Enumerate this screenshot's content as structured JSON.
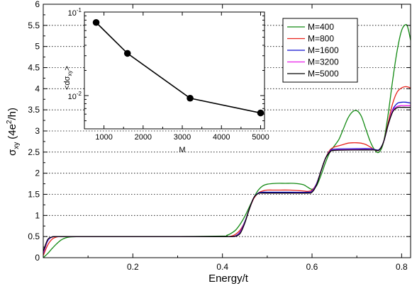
{
  "chart_data": [
    {
      "type": "line",
      "xlabel": "Energy/t",
      "ylabel": "σxy (4e²/h)",
      "ylabel_parts": {
        "base": "σ",
        "sub": "xy",
        "unit_open": "(4e",
        "sup": "2",
        "unit_close": "/h)"
      },
      "xlim": [
        0.0,
        0.82
      ],
      "ylim": [
        0,
        6
      ],
      "xticks": [
        0.2,
        0.4,
        0.6,
        0.8
      ],
      "xtick_labels": [
        "0.2",
        "0.4",
        "0.6",
        "0.8"
      ],
      "yticks": [
        0,
        0.5,
        1,
        1.5,
        2,
        2.5,
        3,
        3.5,
        4,
        4.5,
        5,
        5.5,
        6
      ],
      "ytick_labels": [
        "0",
        "0.5",
        "1",
        "1.5",
        "2",
        "2.5",
        "3",
        "3.5",
        "4",
        "4.5",
        "5",
        "5.5",
        "6"
      ],
      "grid": "horizontal dotted",
      "legend_position": "top-right",
      "series": [
        {
          "name": "M=400",
          "color": "#138a13",
          "x": [
            0.0,
            0.01,
            0.02,
            0.03,
            0.04,
            0.05,
            0.06,
            0.08,
            0.1,
            0.2,
            0.3,
            0.4,
            0.41,
            0.42,
            0.43,
            0.44,
            0.45,
            0.46,
            0.47,
            0.48,
            0.49,
            0.5,
            0.52,
            0.54,
            0.56,
            0.58,
            0.59,
            0.6,
            0.61,
            0.62,
            0.63,
            0.64,
            0.65,
            0.66,
            0.67,
            0.68,
            0.69,
            0.7,
            0.71,
            0.72,
            0.73,
            0.74,
            0.75,
            0.76,
            0.77,
            0.78,
            0.79,
            0.8,
            0.81,
            0.815,
            0.82
          ],
          "y": [
            0.0,
            0.1,
            0.22,
            0.33,
            0.42,
            0.47,
            0.49,
            0.5,
            0.5,
            0.5,
            0.5,
            0.51,
            0.53,
            0.58,
            0.66,
            0.8,
            0.98,
            1.2,
            1.42,
            1.6,
            1.7,
            1.74,
            1.76,
            1.76,
            1.76,
            1.73,
            1.67,
            1.62,
            1.7,
            1.95,
            2.25,
            2.5,
            2.65,
            2.8,
            3.05,
            3.3,
            3.45,
            3.48,
            3.35,
            3.05,
            2.75,
            2.55,
            2.5,
            2.75,
            3.4,
            4.2,
            4.9,
            5.38,
            5.52,
            5.4,
            5.15
          ]
        },
        {
          "name": "M=800",
          "color": "#e8231c",
          "x": [
            0.0,
            0.01,
            0.02,
            0.03,
            0.04,
            0.05,
            0.06,
            0.1,
            0.2,
            0.3,
            0.4,
            0.42,
            0.43,
            0.44,
            0.45,
            0.46,
            0.47,
            0.48,
            0.49,
            0.5,
            0.52,
            0.55,
            0.58,
            0.59,
            0.6,
            0.61,
            0.62,
            0.63,
            0.64,
            0.65,
            0.66,
            0.67,
            0.68,
            0.69,
            0.7,
            0.71,
            0.72,
            0.73,
            0.74,
            0.75,
            0.76,
            0.77,
            0.78,
            0.79,
            0.8,
            0.81,
            0.82
          ],
          "y": [
            0.05,
            0.3,
            0.44,
            0.49,
            0.5,
            0.5,
            0.5,
            0.5,
            0.5,
            0.5,
            0.5,
            0.51,
            0.56,
            0.66,
            0.85,
            1.15,
            1.4,
            1.53,
            1.58,
            1.6,
            1.6,
            1.6,
            1.58,
            1.57,
            1.6,
            1.75,
            2.05,
            2.35,
            2.55,
            2.62,
            2.65,
            2.68,
            2.71,
            2.72,
            2.72,
            2.71,
            2.68,
            2.62,
            2.55,
            2.55,
            2.75,
            3.2,
            3.65,
            3.92,
            4.02,
            4.05,
            4.02
          ]
        },
        {
          "name": "M=1600",
          "color": "#1010d0",
          "x": [
            0.0,
            0.01,
            0.02,
            0.03,
            0.04,
            0.06,
            0.1,
            0.2,
            0.3,
            0.4,
            0.42,
            0.43,
            0.44,
            0.45,
            0.46,
            0.47,
            0.48,
            0.49,
            0.5,
            0.55,
            0.59,
            0.6,
            0.61,
            0.62,
            0.63,
            0.64,
            0.65,
            0.7,
            0.73,
            0.74,
            0.75,
            0.76,
            0.77,
            0.78,
            0.79,
            0.8,
            0.81,
            0.82
          ],
          "y": [
            0.1,
            0.4,
            0.49,
            0.5,
            0.5,
            0.5,
            0.5,
            0.5,
            0.5,
            0.5,
            0.5,
            0.52,
            0.62,
            0.85,
            1.15,
            1.42,
            1.53,
            1.55,
            1.55,
            1.55,
            1.55,
            1.58,
            1.75,
            2.05,
            2.35,
            2.52,
            2.57,
            2.58,
            2.58,
            2.56,
            2.56,
            2.75,
            3.15,
            3.5,
            3.65,
            3.68,
            3.68,
            3.66
          ]
        },
        {
          "name": "M=3200",
          "color": "#e81ce8",
          "x": [
            0.0,
            0.01,
            0.02,
            0.03,
            0.04,
            0.06,
            0.1,
            0.2,
            0.3,
            0.4,
            0.42,
            0.43,
            0.44,
            0.45,
            0.46,
            0.47,
            0.48,
            0.49,
            0.5,
            0.55,
            0.59,
            0.6,
            0.61,
            0.62,
            0.63,
            0.64,
            0.65,
            0.7,
            0.73,
            0.74,
            0.75,
            0.76,
            0.77,
            0.78,
            0.79,
            0.8,
            0.81,
            0.82
          ],
          "y": [
            0.12,
            0.42,
            0.49,
            0.5,
            0.5,
            0.5,
            0.5,
            0.5,
            0.5,
            0.5,
            0.5,
            0.51,
            0.6,
            0.83,
            1.15,
            1.42,
            1.52,
            1.53,
            1.53,
            1.53,
            1.53,
            1.56,
            1.73,
            2.05,
            2.35,
            2.5,
            2.55,
            2.56,
            2.56,
            2.55,
            2.55,
            2.75,
            3.15,
            3.48,
            3.58,
            3.6,
            3.6,
            3.6
          ]
        },
        {
          "name": "M=5000",
          "color": "#000000",
          "x": [
            0.0,
            0.01,
            0.02,
            0.03,
            0.04,
            0.06,
            0.1,
            0.2,
            0.3,
            0.4,
            0.42,
            0.43,
            0.44,
            0.45,
            0.46,
            0.47,
            0.48,
            0.49,
            0.5,
            0.55,
            0.59,
            0.6,
            0.61,
            0.62,
            0.63,
            0.64,
            0.65,
            0.7,
            0.73,
            0.74,
            0.75,
            0.76,
            0.77,
            0.78,
            0.79,
            0.8,
            0.81,
            0.82
          ],
          "y": [
            0.15,
            0.43,
            0.49,
            0.5,
            0.5,
            0.5,
            0.5,
            0.5,
            0.5,
            0.5,
            0.5,
            0.51,
            0.58,
            0.82,
            1.15,
            1.42,
            1.52,
            1.53,
            1.53,
            1.53,
            1.53,
            1.55,
            1.72,
            2.05,
            2.35,
            2.5,
            2.54,
            2.55,
            2.55,
            2.55,
            2.55,
            2.75,
            3.15,
            3.45,
            3.55,
            3.56,
            3.56,
            3.56
          ]
        }
      ]
    },
    {
      "type": "line",
      "subtype": "inset",
      "xlabel": "M",
      "ylabel": "<dσxy>",
      "ylabel_parts": {
        "open": "<dσ",
        "sub": "xy",
        "close": ">"
      },
      "xlim": [
        500,
        5100
      ],
      "ylim": [
        0.004,
        0.1
      ],
      "yscale": "log",
      "xticks": [
        1000,
        2000,
        3000,
        4000,
        5000
      ],
      "xtick_labels": [
        "1000",
        "2000",
        "3000",
        "4000",
        "5000"
      ],
      "yticks": [
        {
          "value": 0.01,
          "base": "10",
          "exp": "-2"
        },
        {
          "value": 0.1,
          "base": "10",
          "exp": "-1"
        }
      ],
      "series": [
        {
          "name": "",
          "color": "#000000",
          "marker": "circle",
          "x": [
            800,
            1600,
            3200,
            5000
          ],
          "y": [
            0.075,
            0.032,
            0.0093,
            0.0062
          ]
        }
      ]
    }
  ]
}
